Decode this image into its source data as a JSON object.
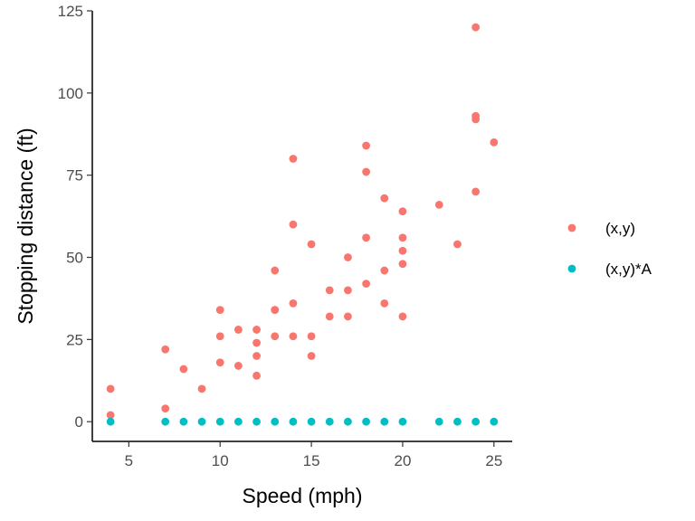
{
  "chart_data": {
    "type": "scatter",
    "title": "",
    "xlabel": "Speed (mph)",
    "ylabel": "Stopping distance (ft)",
    "xlim": [
      3,
      26
    ],
    "ylim": [
      -6,
      125
    ],
    "x_ticks": [
      5,
      10,
      15,
      20,
      25
    ],
    "y_ticks": [
      0,
      25,
      50,
      75,
      100,
      125
    ],
    "grid": false,
    "legend_position": "right",
    "series": [
      {
        "name": "(x,y)",
        "color": "#f8766d",
        "points": [
          [
            4,
            2
          ],
          [
            4,
            10
          ],
          [
            7,
            4
          ],
          [
            7,
            22
          ],
          [
            8,
            16
          ],
          [
            9,
            10
          ],
          [
            10,
            18
          ],
          [
            10,
            26
          ],
          [
            10,
            34
          ],
          [
            11,
            17
          ],
          [
            11,
            28
          ],
          [
            12,
            14
          ],
          [
            12,
            20
          ],
          [
            12,
            24
          ],
          [
            12,
            28
          ],
          [
            13,
            26
          ],
          [
            13,
            34
          ],
          [
            13,
            34
          ],
          [
            13,
            46
          ],
          [
            14,
            26
          ],
          [
            14,
            36
          ],
          [
            14,
            60
          ],
          [
            14,
            80
          ],
          [
            15,
            20
          ],
          [
            15,
            26
          ],
          [
            15,
            54
          ],
          [
            16,
            32
          ],
          [
            16,
            40
          ],
          [
            17,
            32
          ],
          [
            17,
            40
          ],
          [
            17,
            50
          ],
          [
            18,
            42
          ],
          [
            18,
            56
          ],
          [
            18,
            76
          ],
          [
            18,
            84
          ],
          [
            19,
            36
          ],
          [
            19,
            46
          ],
          [
            19,
            68
          ],
          [
            20,
            32
          ],
          [
            20,
            48
          ],
          [
            20,
            52
          ],
          [
            20,
            56
          ],
          [
            20,
            64
          ],
          [
            22,
            66
          ],
          [
            23,
            54
          ],
          [
            24,
            70
          ],
          [
            24,
            92
          ],
          [
            24,
            93
          ],
          [
            24,
            120
          ],
          [
            25,
            85
          ]
        ]
      },
      {
        "name": "(x,y)*A",
        "color": "#00bfc4",
        "points": [
          [
            4,
            0
          ],
          [
            7,
            0
          ],
          [
            8,
            0
          ],
          [
            9,
            0
          ],
          [
            10,
            0
          ],
          [
            11,
            0
          ],
          [
            12,
            0
          ],
          [
            13,
            0
          ],
          [
            14,
            0
          ],
          [
            15,
            0
          ],
          [
            16,
            0
          ],
          [
            17,
            0
          ],
          [
            18,
            0
          ],
          [
            19,
            0
          ],
          [
            20,
            0
          ],
          [
            22,
            0
          ],
          [
            23,
            0
          ],
          [
            24,
            0
          ],
          [
            25,
            0
          ]
        ]
      }
    ]
  }
}
